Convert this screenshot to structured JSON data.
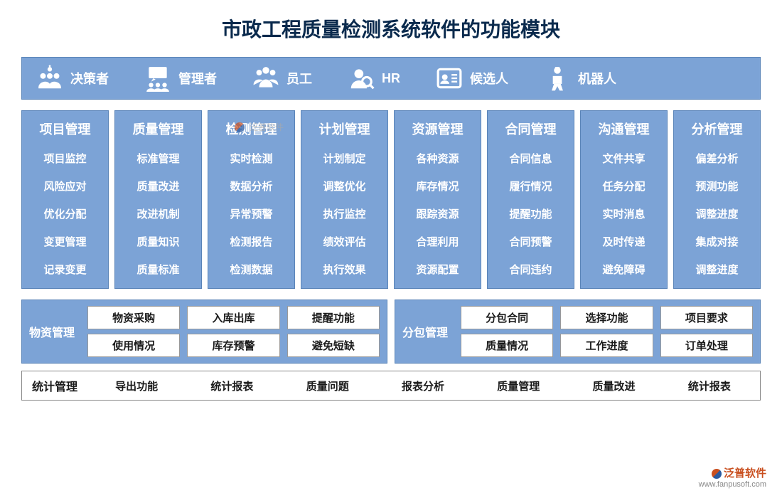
{
  "title": "市政工程质量检测系统软件的功能模块",
  "colors": {
    "primary_bg": "#7ca3d6",
    "primary_border": "#5a84b8",
    "text_dark": "#0a2a4d",
    "text_white": "#ffffff",
    "btn_bg": "#ffffff",
    "btn_border": "#999999"
  },
  "roles": [
    {
      "icon": "decision-icon",
      "label": "决策者"
    },
    {
      "icon": "manager-icon",
      "label": "管理者"
    },
    {
      "icon": "staff-icon",
      "label": "员工"
    },
    {
      "icon": "hr-icon",
      "label": "HR"
    },
    {
      "icon": "candidate-icon",
      "label": "候选人"
    },
    {
      "icon": "robot-icon",
      "label": "机器人"
    }
  ],
  "modules": [
    {
      "title": "项目管理",
      "items": [
        "项目监控",
        "风险应对",
        "优化分配",
        "变更管理",
        "记录变更"
      ]
    },
    {
      "title": "质量管理",
      "items": [
        "标准管理",
        "质量改进",
        "改进机制",
        "质量知识",
        "质量标准"
      ]
    },
    {
      "title": "检测管理",
      "items": [
        "实时检测",
        "数据分析",
        "异常预警",
        "检测报告",
        "检测数据"
      ]
    },
    {
      "title": "计划管理",
      "items": [
        "计划制定",
        "调整优化",
        "执行监控",
        "绩效评估",
        "执行效果"
      ]
    },
    {
      "title": "资源管理",
      "items": [
        "各种资源",
        "库存情况",
        "跟踪资源",
        "合理利用",
        "资源配置"
      ]
    },
    {
      "title": "合同管理",
      "items": [
        "合同信息",
        "履行情况",
        "提醒功能",
        "合同预警",
        "合同违约"
      ]
    },
    {
      "title": "沟通管理",
      "items": [
        "文件共享",
        "任务分配",
        "实时消息",
        "及时传递",
        "避免障碍"
      ]
    },
    {
      "title": "分析管理",
      "items": [
        "偏差分析",
        "预测功能",
        "调整进度",
        "集成对接",
        "调整进度"
      ]
    }
  ],
  "material_mgmt": {
    "label": "物资管理",
    "items": [
      "物资采购",
      "入库出库",
      "提醒功能",
      "使用情况",
      "库存预警",
      "避免短缺"
    ]
  },
  "subcontract_mgmt": {
    "label": "分包管理",
    "items": [
      "分包合同",
      "选择功能",
      "项目要求",
      "质量情况",
      "工作进度",
      "订单处理"
    ]
  },
  "stats_mgmt": {
    "label": "统计管理",
    "items": [
      "导出功能",
      "统计报表",
      "质量问题",
      "报表分析",
      "质量管理",
      "质量改进",
      "统计报表"
    ]
  },
  "watermark": "泛普软件",
  "brand": {
    "name": "泛普软件",
    "url": "www.fanpusoft.com"
  }
}
